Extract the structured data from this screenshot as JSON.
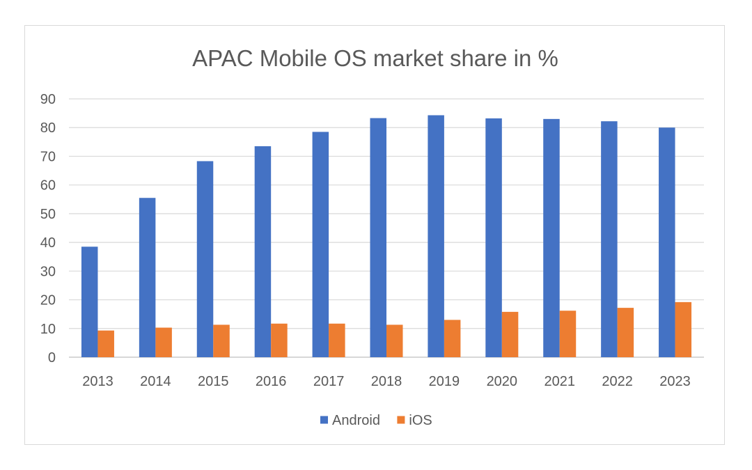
{
  "chart_data": {
    "type": "bar",
    "title": "APAC Mobile OS market share in %",
    "xlabel": "",
    "ylabel": "",
    "ylim": [
      0,
      90
    ],
    "yticks": [
      0,
      10,
      20,
      30,
      40,
      50,
      60,
      70,
      80,
      90
    ],
    "grid": true,
    "legend_position": "bottom",
    "categories": [
      "2013",
      "2014",
      "2015",
      "2016",
      "2017",
      "2018",
      "2019",
      "2020",
      "2021",
      "2022",
      "2023"
    ],
    "series": [
      {
        "name": "Android",
        "color": "#4472c4",
        "values": [
          38.5,
          55.5,
          68.3,
          73.5,
          78.5,
          83.3,
          84.3,
          83.2,
          83.0,
          82.2,
          80.0
        ]
      },
      {
        "name": "iOS",
        "color": "#ed7d31",
        "values": [
          9.3,
          10.3,
          11.3,
          11.7,
          11.7,
          11.3,
          13.0,
          15.8,
          16.2,
          17.2,
          19.2
        ]
      }
    ]
  }
}
